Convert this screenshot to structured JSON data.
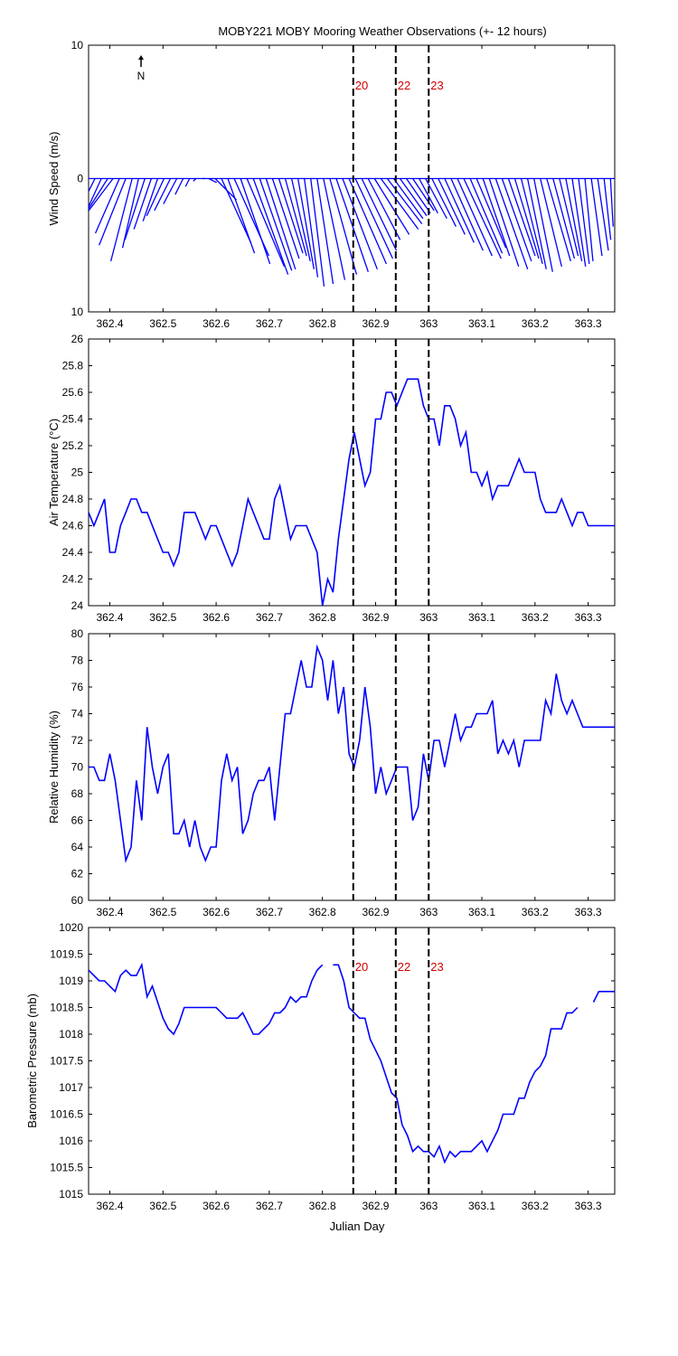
{
  "title": "MOBY221 MOBY Mooring Weather Observations (+- 12 hours)",
  "north_label": "N",
  "markers": {
    "x": [
      362.858,
      362.938,
      363.0
    ],
    "labels": [
      "20",
      "22",
      "23"
    ]
  },
  "xaxis": {
    "label": "Julian Day",
    "lim": [
      362.36,
      363.35
    ],
    "ticks": [
      362.4,
      362.5,
      362.6,
      362.7,
      362.8,
      362.9,
      363,
      363.1,
      363.2,
      363.3
    ],
    "tick_labels": [
      "362.4",
      "362.5",
      "362.6",
      "362.7",
      "362.8",
      "362.9",
      "363",
      "363.1",
      "363.2",
      "363.3"
    ]
  },
  "chart_data": [
    {
      "type": "line",
      "subtype": "wind-stick",
      "ylabel": "Wind Speed (m/s)",
      "ylim": [
        -10,
        10
      ],
      "yticks": [
        -10,
        0,
        10
      ],
      "ytick_labels": [
        "10",
        "0",
        "10"
      ],
      "color": "#0000ff",
      "series": [
        {
          "x": [
            362.36,
            362.372,
            362.384,
            362.396,
            362.406,
            362.418,
            362.43,
            362.442,
            362.454,
            362.466,
            362.478,
            362.49,
            362.502,
            362.514,
            362.526,
            362.538,
            362.55,
            362.562,
            362.574,
            362.586,
            362.598,
            362.61,
            362.622,
            362.634,
            362.646,
            362.658,
            362.67,
            362.682,
            362.694,
            362.706,
            362.718,
            362.73,
            362.742,
            362.754,
            362.766,
            362.778,
            362.79,
            362.802,
            362.814,
            362.826,
            362.838,
            362.85,
            362.862,
            362.874,
            362.886,
            362.898,
            362.91,
            362.922,
            362.934,
            362.946,
            362.958,
            362.97,
            362.982,
            362.994,
            363.006,
            363.018,
            363.03,
            363.042,
            363.054,
            363.066,
            363.078,
            363.09,
            363.102,
            363.114,
            363.126,
            363.138,
            363.15,
            363.162,
            363.174,
            363.186,
            363.198,
            363.21,
            363.222,
            363.234,
            363.246,
            363.258,
            363.27,
            363.282,
            363.294,
            363.306,
            363.318,
            363.33,
            363.342
          ],
          "u": [
            -3.2,
            -3,
            -2.6,
            -2.4,
            -2.2,
            -1.8,
            -2,
            -1.6,
            -1.2,
            -1.5,
            -1.3,
            -1.1,
            -1.3,
            -1.2,
            -1,
            -0.6,
            -0.3,
            -0.2,
            0.2,
            0.6,
            1.6,
            2.2,
            2,
            2.6,
            2.2,
            2.8,
            2.6,
            2.4,
            2.2,
            2,
            1.8,
            1.6,
            1.4,
            1.2,
            1,
            1,
            1.2,
            1.6,
            2,
            2.4,
            2.6,
            2.8,
            2.8,
            2.6,
            2.4,
            2.6,
            2.8,
            2.6,
            2.2,
            2,
            1.8,
            1.6,
            1.4,
            1.6,
            1.8,
            2,
            2.2,
            2.4,
            2.6,
            2.8,
            2.4,
            2.2,
            2,
            2.2,
            2.4,
            2.2,
            2,
            1.8,
            1.6,
            1.4,
            1.4,
            1.6,
            1.8,
            1.6,
            1.4,
            1.2,
            1,
            0.8,
            0.6,
            0.8,
            0.8,
            0.5,
            0.2
          ],
          "v": [
            -6.8,
            -6,
            -5.7,
            -3.8,
            -2.9,
            -4.1,
            -5,
            -6.2,
            -5.2,
            -4.6,
            -3.8,
            -3.2,
            -2.8,
            -2.4,
            -1.9,
            -1.2,
            -0.6,
            -0.2,
            0,
            -0.3,
            -1.6,
            -4.8,
            -5.6,
            -5.8,
            -6.4,
            -6.6,
            -7.2,
            -6.9,
            -6.8,
            -6,
            -5.6,
            -5.8,
            -6.2,
            -6.8,
            -7.4,
            -8.1,
            -7.9,
            -7.6,
            -7.2,
            -7,
            -6.8,
            -6.4,
            -6,
            -5.4,
            -4.6,
            -4.2,
            -3.8,
            -3.4,
            -3,
            -2.8,
            -2.6,
            -2.4,
            -2.6,
            -3,
            -3.6,
            -4.2,
            -4.8,
            -5.4,
            -5.8,
            -6,
            -5.6,
            -5.2,
            -5.8,
            -6.6,
            -6.8,
            -6.2,
            -5.8,
            -6,
            -6.4,
            -6.8,
            -7,
            -6.6,
            -6.2,
            -6,
            -5.8,
            -6.2,
            -6.6,
            -6.4,
            -6.2,
            -5.8,
            -5.4,
            -4.6,
            -3.6
          ]
        }
      ]
    },
    {
      "type": "line",
      "ylabel": "Air Temperature (°C)",
      "ylim": [
        24,
        26
      ],
      "yticks": [
        24,
        24.2,
        24.4,
        24.6,
        24.8,
        25,
        25.2,
        25.4,
        25.6,
        25.8,
        26
      ],
      "ytick_labels": [
        "24",
        "24.2",
        "24.4",
        "24.6",
        "24.8",
        "25",
        "25.2",
        "25.4",
        "25.6",
        "25.8",
        "26"
      ],
      "color": "#0000ff",
      "series": [
        {
          "x": [
            362.36,
            362.37,
            362.38,
            362.39,
            362.4,
            362.41,
            362.42,
            362.43,
            362.44,
            362.45,
            362.46,
            362.47,
            362.48,
            362.49,
            362.5,
            362.51,
            362.52,
            362.53,
            362.54,
            362.55,
            362.56,
            362.57,
            362.58,
            362.59,
            362.6,
            362.61,
            362.62,
            362.63,
            362.64,
            362.65,
            362.66,
            362.67,
            362.68,
            362.69,
            362.7,
            362.71,
            362.72,
            362.73,
            362.74,
            362.75,
            362.76,
            362.77,
            362.78,
            362.79,
            362.8,
            362.81,
            362.82,
            362.83,
            362.84,
            362.85,
            362.86,
            362.87,
            362.88,
            362.89,
            362.9,
            362.91,
            362.92,
            362.93,
            362.94,
            362.95,
            362.96,
            362.97,
            362.98,
            362.99,
            363,
            363.01,
            363.02,
            363.03,
            363.04,
            363.05,
            363.06,
            363.07,
            363.08,
            363.09,
            363.1,
            363.11,
            363.12,
            363.13,
            363.14,
            363.15,
            363.16,
            363.17,
            363.18,
            363.19,
            363.2,
            363.21,
            363.22,
            363.23,
            363.24,
            363.25,
            363.26,
            363.27,
            363.28,
            363.29,
            363.3,
            363.31,
            363.32,
            363.33,
            363.34,
            363.35
          ],
          "y": [
            24.7,
            24.6,
            24.7,
            24.8,
            24.4,
            24.4,
            24.6,
            24.7,
            24.8,
            24.8,
            24.7,
            24.7,
            24.6,
            24.5,
            24.4,
            24.4,
            24.3,
            24.4,
            24.7,
            24.7,
            24.7,
            24.6,
            24.5,
            24.6,
            24.6,
            24.5,
            24.4,
            24.3,
            24.4,
            24.6,
            24.8,
            24.7,
            24.6,
            24.5,
            24.5,
            24.8,
            24.9,
            24.7,
            24.5,
            24.6,
            24.6,
            24.6,
            24.5,
            24.4,
            24,
            24.2,
            24.1,
            24.5,
            24.8,
            25.1,
            25.3,
            25.1,
            24.9,
            25,
            25.4,
            25.4,
            25.6,
            25.6,
            25.5,
            25.6,
            25.7,
            25.7,
            25.7,
            25.5,
            25.4,
            25.4,
            25.2,
            25.5,
            25.5,
            25.4,
            25.2,
            25.3,
            25,
            25,
            24.9,
            25,
            24.8,
            24.9,
            24.9,
            24.9,
            25,
            25.1,
            25,
            25,
            25,
            24.8,
            24.7,
            24.7,
            24.7,
            24.8,
            24.7,
            24.6,
            24.7,
            24.7,
            24.6,
            24.6,
            24.6,
            24.6,
            24.6,
            24.6
          ]
        }
      ]
    },
    {
      "type": "line",
      "ylabel": "Relative Humidity (%)",
      "ylim": [
        60,
        80
      ],
      "yticks": [
        60,
        62,
        64,
        66,
        68,
        70,
        72,
        74,
        76,
        78,
        80
      ],
      "ytick_labels": [
        "60",
        "62",
        "64",
        "66",
        "68",
        "70",
        "72",
        "74",
        "76",
        "78",
        "80"
      ],
      "color": "#0000ff",
      "series": [
        {
          "x": [
            362.36,
            362.37,
            362.38,
            362.39,
            362.4,
            362.41,
            362.42,
            362.43,
            362.44,
            362.45,
            362.46,
            362.47,
            362.48,
            362.49,
            362.5,
            362.51,
            362.52,
            362.53,
            362.54,
            362.55,
            362.56,
            362.57,
            362.58,
            362.59,
            362.6,
            362.61,
            362.62,
            362.63,
            362.64,
            362.65,
            362.66,
            362.67,
            362.68,
            362.69,
            362.7,
            362.71,
            362.72,
            362.73,
            362.74,
            362.75,
            362.76,
            362.77,
            362.78,
            362.79,
            362.8,
            362.81,
            362.82,
            362.83,
            362.84,
            362.85,
            362.86,
            362.87,
            362.88,
            362.89,
            362.9,
            362.91,
            362.92,
            362.93,
            362.94,
            362.95,
            362.96,
            362.97,
            362.98,
            362.99,
            363,
            363.01,
            363.02,
            363.03,
            363.04,
            363.05,
            363.06,
            363.07,
            363.08,
            363.09,
            363.1,
            363.11,
            363.12,
            363.13,
            363.14,
            363.15,
            363.16,
            363.17,
            363.18,
            363.19,
            363.2,
            363.21,
            363.22,
            363.23,
            363.24,
            363.25,
            363.26,
            363.27,
            363.28,
            363.29,
            363.3,
            363.31,
            363.32,
            363.33,
            363.34,
            363.35
          ],
          "y": [
            70,
            70,
            69,
            69,
            71,
            69,
            66,
            63,
            64,
            69,
            66,
            73,
            70,
            68,
            70,
            71,
            65,
            65,
            66,
            64,
            66,
            64,
            63,
            64,
            64,
            69,
            71,
            69,
            70,
            65,
            66,
            68,
            69,
            69,
            70,
            66,
            70,
            74,
            74,
            76,
            78,
            76,
            76,
            79,
            78,
            75,
            78,
            74,
            76,
            71,
            70,
            72,
            76,
            73,
            68,
            70,
            68,
            69,
            70,
            70,
            70,
            66,
            67,
            71,
            69,
            72,
            72,
            70,
            72,
            74,
            72,
            73,
            73,
            74,
            74,
            74,
            75,
            71,
            72,
            71,
            72,
            70,
            72,
            72,
            72,
            72,
            75,
            74,
            77,
            75,
            74,
            75,
            74,
            73,
            73,
            73,
            73,
            73,
            73,
            73
          ]
        }
      ]
    },
    {
      "type": "line",
      "ylabel": "Barometric Pressure (mb)",
      "xlabel": "Julian Day",
      "ylim": [
        1015,
        1020
      ],
      "yticks": [
        1015,
        1015.5,
        1016,
        1016.5,
        1017,
        1017.5,
        1018,
        1018.5,
        1019,
        1019.5,
        1020
      ],
      "ytick_labels": [
        "1015",
        "1015.5",
        "1016",
        "1016.5",
        "1017",
        "1017.5",
        "1018",
        "1018.5",
        "1019",
        "1019.5",
        "1020"
      ],
      "color": "#0000ff",
      "series": [
        {
          "x": [
            362.36,
            362.37,
            362.38,
            362.39,
            362.4,
            362.41,
            362.42,
            362.43,
            362.44,
            362.45,
            362.46,
            362.47,
            362.48,
            362.49,
            362.5,
            362.51,
            362.52,
            362.53,
            362.54,
            362.55,
            362.56,
            362.57,
            362.58,
            362.59,
            362.6,
            362.61,
            362.62,
            362.63,
            362.64,
            362.65,
            362.66,
            362.67,
            362.68,
            362.69,
            362.7,
            362.71,
            362.72,
            362.73,
            362.74,
            362.75,
            362.76,
            362.77,
            362.78,
            362.79,
            362.8,
            362.81,
            362.82,
            362.83,
            362.84,
            362.85,
            362.86,
            362.87,
            362.88,
            362.89,
            362.9,
            362.91,
            362.92,
            362.93,
            362.94,
            362.95,
            362.96,
            362.97,
            362.98,
            362.99,
            363,
            363.01,
            363.02,
            363.03,
            363.04,
            363.05,
            363.06,
            363.07,
            363.08,
            363.09,
            363.1,
            363.11,
            363.12,
            363.13,
            363.14,
            363.15,
            363.16,
            363.17,
            363.18,
            363.19,
            363.2,
            363.21,
            363.22,
            363.23,
            363.24,
            363.25,
            363.26,
            363.27,
            363.28,
            363.29,
            363.3,
            363.31,
            363.32,
            363.33,
            363.34,
            363.35
          ],
          "y": [
            1019.2,
            1019.1,
            1019,
            1019,
            1018.9,
            1018.8,
            1019.1,
            1019.2,
            1019.1,
            1019.1,
            1019.3,
            1018.7,
            1018.9,
            1018.6,
            1018.3,
            1018.1,
            1018,
            1018.2,
            1018.5,
            1018.5,
            1018.5,
            1018.5,
            1018.5,
            1018.5,
            1018.5,
            1018.4,
            1018.3,
            1018.3,
            1018.3,
            1018.4,
            1018.2,
            1018,
            1018,
            1018.1,
            1018.2,
            1018.4,
            1018.4,
            1018.5,
            1018.7,
            1018.6,
            1018.7,
            1018.7,
            1019,
            1019.2,
            1019.3,
            null,
            1019.3,
            1019.3,
            1019,
            1018.5,
            1018.4,
            1018.3,
            1018.3,
            1017.9,
            1017.7,
            1017.5,
            1017.2,
            1016.9,
            1016.8,
            1016.3,
            1016.1,
            1015.8,
            1015.9,
            1015.8,
            1015.8,
            1015.7,
            1015.9,
            1015.6,
            1015.8,
            1015.7,
            1015.8,
            1015.8,
            1015.8,
            1015.9,
            1016,
            1015.8,
            1016,
            1016.2,
            1016.5,
            1016.5,
            1016.5,
            1016.8,
            1016.8,
            1017.1,
            1017.3,
            1017.4,
            1017.6,
            1018.1,
            1018.1,
            1018.1,
            1018.4,
            1018.4,
            1018.5,
            null,
            null,
            1018.6,
            1018.8,
            1018.8,
            1018.8,
            1018.8
          ]
        }
      ]
    }
  ]
}
